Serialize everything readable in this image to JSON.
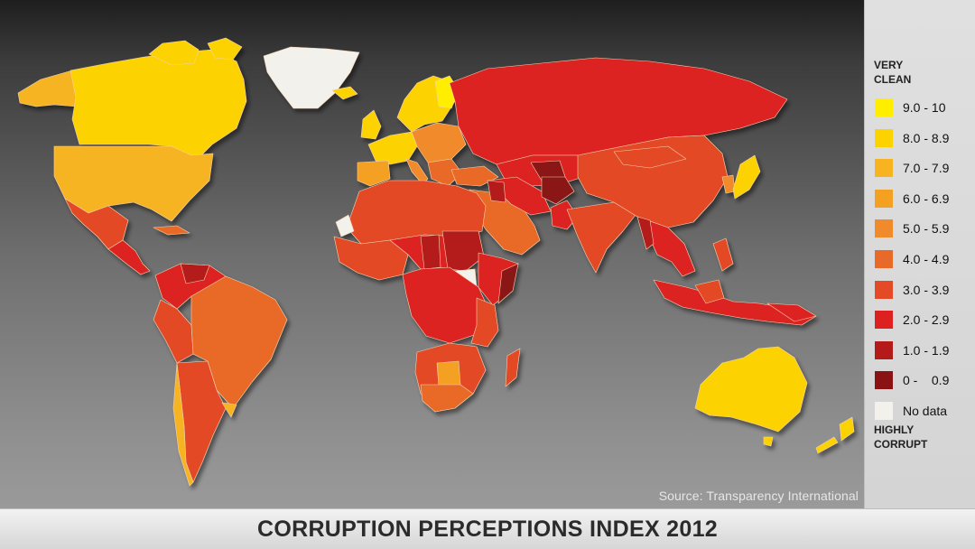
{
  "map": {
    "title": "CORRUPTION PERCEPTIONS INDEX 2012",
    "source": "Source: Transparency International",
    "legend": {
      "top_label": "VERY\nCLEAN",
      "bottom_label": "HIGHLY\nCORRUPT",
      "items": [
        {
          "label": "9.0 - 10",
          "color": "#ffee00"
        },
        {
          "label": "8.0 - 8.9",
          "color": "#fcd200"
        },
        {
          "label": "7.0 - 7.9",
          "color": "#f7b420"
        },
        {
          "label": "6.0 - 6.9",
          "color": "#f4a020"
        },
        {
          "label": "5.0 - 5.9",
          "color": "#f08a2a"
        },
        {
          "label": "4.0 - 4.9",
          "color": "#e86a28"
        },
        {
          "label": "3.0 - 3.9",
          "color": "#e44a26"
        },
        {
          "label": "2.0 - 2.9",
          "color": "#dd2020"
        },
        {
          "label": "1.0 - 1.9",
          "color": "#b41a1a"
        },
        {
          "label": "0 -    0.9",
          "color": "#8a1212"
        },
        {
          "label": "No data",
          "color": "#f3f1ec"
        }
      ]
    }
  }
}
